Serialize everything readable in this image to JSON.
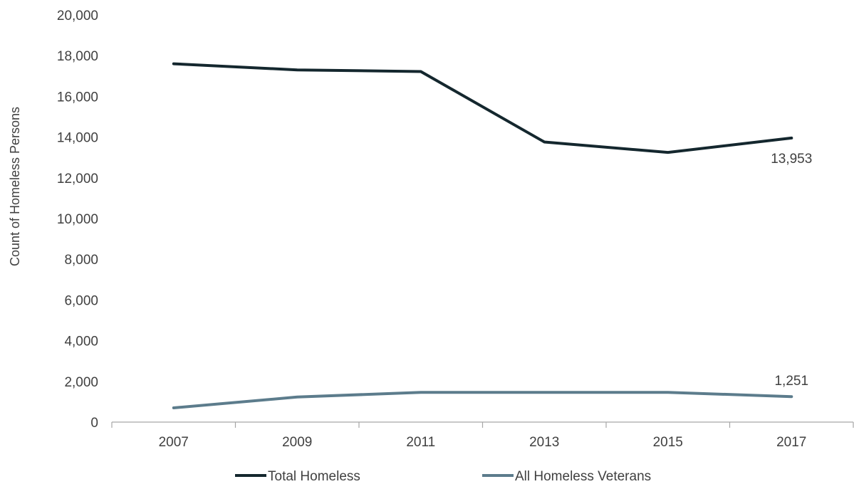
{
  "chart_data": {
    "type": "line",
    "title": "",
    "xlabel": "",
    "ylabel": "Count of Homeless Persons",
    "x": [
      "2007",
      "2009",
      "2011",
      "2013",
      "2015",
      "2017"
    ],
    "ylim": [
      0,
      20000
    ],
    "yticks": [
      0,
      2000,
      4000,
      6000,
      8000,
      10000,
      12000,
      14000,
      16000,
      18000,
      20000
    ],
    "ytick_labels": [
      "0",
      "2,000",
      "4,000",
      "6,000",
      "8,000",
      "10,000",
      "12,000",
      "14,000",
      "16,000",
      "18,000",
      "20,000"
    ],
    "grid": false,
    "legend_position": "bottom",
    "series": [
      {
        "name": "Total Homeless",
        "color": "#14272e",
        "values": [
          17600,
          17300,
          17220,
          13760,
          13250,
          13953
        ],
        "end_label": "13,953"
      },
      {
        "name": "All Homeless Veterans",
        "color": "#5c7c8c",
        "values": [
          700,
          1230,
          1460,
          1460,
          1460,
          1251
        ],
        "end_label": "1,251"
      }
    ]
  }
}
